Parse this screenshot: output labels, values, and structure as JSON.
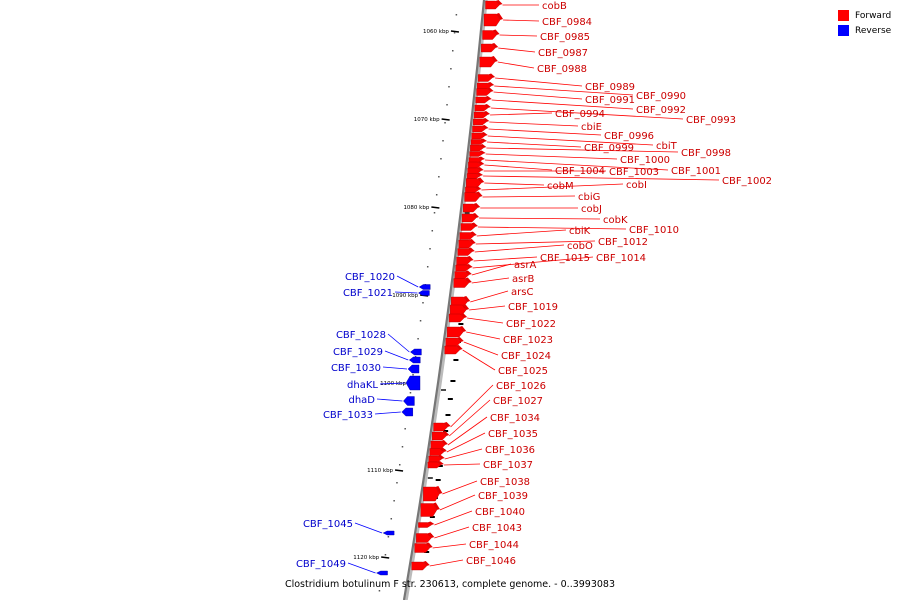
{
  "legend": {
    "forward": {
      "label": "Forward",
      "color": "#ff0000"
    },
    "reverse": {
      "label": "Reverse",
      "color": "#0000ff"
    }
  },
  "caption": "Clostridium botulinum F str. 230613, complete genome. - 0..3993083",
  "ticks": [
    "1060 kbp",
    "1070 kbp",
    "1080 kbp",
    "1090 kbp",
    "1100 kbp",
    "1110 kbp",
    "1120 kbp"
  ],
  "genes": [
    {
      "label": "cobB",
      "strand": "forward"
    },
    {
      "label": "CBF_0984",
      "strand": "forward"
    },
    {
      "label": "CBF_0985",
      "strand": "forward"
    },
    {
      "label": "CBF_0987",
      "strand": "forward"
    },
    {
      "label": "CBF_0988",
      "strand": "forward"
    },
    {
      "label": "CBF_0989",
      "strand": "forward"
    },
    {
      "label": "CBF_0990",
      "strand": "forward"
    },
    {
      "label": "CBF_0991",
      "strand": "forward"
    },
    {
      "label": "CBF_0992",
      "strand": "forward"
    },
    {
      "label": "CBF_0993",
      "strand": "forward"
    },
    {
      "label": "CBF_0994",
      "strand": "forward"
    },
    {
      "label": "cbiE",
      "strand": "forward"
    },
    {
      "label": "CBF_0996",
      "strand": "forward"
    },
    {
      "label": "cbiT",
      "strand": "forward"
    },
    {
      "label": "CBF_0999",
      "strand": "forward"
    },
    {
      "label": "CBF_0998",
      "strand": "forward"
    },
    {
      "label": "CBF_1000",
      "strand": "forward"
    },
    {
      "label": "CBF_1001",
      "strand": "forward"
    },
    {
      "label": "CBF_1004",
      "strand": "forward"
    },
    {
      "label": "CBF_1003",
      "strand": "forward"
    },
    {
      "label": "CBF_1002",
      "strand": "forward"
    },
    {
      "label": "cobM",
      "strand": "forward"
    },
    {
      "label": "cobI",
      "strand": "forward"
    },
    {
      "label": "cbiG",
      "strand": "forward"
    },
    {
      "label": "cobJ",
      "strand": "forward"
    },
    {
      "label": "cobK",
      "strand": "forward"
    },
    {
      "label": "CBF_1010",
      "strand": "forward"
    },
    {
      "label": "cbiK",
      "strand": "forward"
    },
    {
      "label": "CBF_1012",
      "strand": "forward"
    },
    {
      "label": "cobO",
      "strand": "forward"
    },
    {
      "label": "CBF_1015",
      "strand": "forward"
    },
    {
      "label": "CBF_1014",
      "strand": "forward"
    },
    {
      "label": "asrA",
      "strand": "forward"
    },
    {
      "label": "asrB",
      "strand": "forward"
    },
    {
      "label": "arsC",
      "strand": "forward"
    },
    {
      "label": "CBF_1019",
      "strand": "forward"
    },
    {
      "label": "CBF_1022",
      "strand": "forward"
    },
    {
      "label": "CBF_1023",
      "strand": "forward"
    },
    {
      "label": "CBF_1024",
      "strand": "forward"
    },
    {
      "label": "CBF_1025",
      "strand": "forward"
    },
    {
      "label": "CBF_1026",
      "strand": "forward"
    },
    {
      "label": "CBF_1027",
      "strand": "forward"
    },
    {
      "label": "CBF_1034",
      "strand": "forward"
    },
    {
      "label": "CBF_1035",
      "strand": "forward"
    },
    {
      "label": "CBF_1036",
      "strand": "forward"
    },
    {
      "label": "CBF_1037",
      "strand": "forward"
    },
    {
      "label": "CBF_1038",
      "strand": "forward"
    },
    {
      "label": "CBF_1039",
      "strand": "forward"
    },
    {
      "label": "CBF_1040",
      "strand": "forward"
    },
    {
      "label": "CBF_1043",
      "strand": "forward"
    },
    {
      "label": "CBF_1044",
      "strand": "forward"
    },
    {
      "label": "CBF_1046",
      "strand": "forward"
    },
    {
      "label": "CBF_1020",
      "strand": "reverse"
    },
    {
      "label": "CBF_1021",
      "strand": "reverse"
    },
    {
      "label": "CBF_1028",
      "strand": "reverse"
    },
    {
      "label": "CBF_1029",
      "strand": "reverse"
    },
    {
      "label": "CBF_1030",
      "strand": "reverse"
    },
    {
      "label": "dhaKL",
      "strand": "reverse"
    },
    {
      "label": "dhaD",
      "strand": "reverse"
    },
    {
      "label": "CBF_1033",
      "strand": "reverse"
    },
    {
      "label": "CBF_1045",
      "strand": "reverse"
    },
    {
      "label": "CBF_1049",
      "strand": "reverse"
    }
  ]
}
